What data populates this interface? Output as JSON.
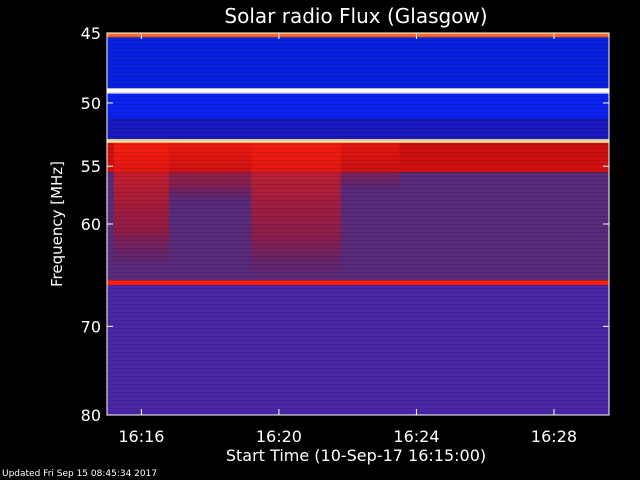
{
  "chart_data": {
    "type": "heatmap",
    "title": "Solar radio Flux (Glasgow)",
    "xlabel": "Start Time (10-Sep-17 16:15:00)",
    "ylabel": "Frequency [MHz]",
    "x_unit": "minutes after 16:15:00",
    "xlim": [
      0,
      14.6
    ],
    "x_ticks": [
      {
        "value": 1,
        "label": "16:16"
      },
      {
        "value": 5,
        "label": "16:20"
      },
      {
        "value": 9,
        "label": "16:24"
      },
      {
        "value": 13,
        "label": "16:28"
      }
    ],
    "ylim": [
      45,
      80
    ],
    "y_scale": "log",
    "y_ticks": [
      {
        "value": 45,
        "label": "45"
      },
      {
        "value": 50,
        "label": "50"
      },
      {
        "value": 55,
        "label": "55"
      },
      {
        "value": 60,
        "label": "60"
      },
      {
        "value": 70,
        "label": "70"
      },
      {
        "value": 80,
        "label": "80"
      }
    ],
    "colormap": [
      "#1f0fa0",
      "#4a2a9a",
      "#8a1a4a",
      "#d01010",
      "#ff2a10",
      "#ffb060",
      "#ffffff"
    ],
    "bands": [
      {
        "f_min": 45.0,
        "f_max": 45.3,
        "color": "#ff6a20"
      },
      {
        "f_min": 45.3,
        "f_max": 48.9,
        "color": "#0a20e0"
      },
      {
        "f_min": 48.9,
        "f_max": 49.3,
        "color": "#ffffff"
      },
      {
        "f_min": 49.3,
        "f_max": 51.2,
        "color": "#0a22f0"
      },
      {
        "f_min": 51.2,
        "f_max": 52.8,
        "color": "#1a18c0"
      },
      {
        "f_min": 52.8,
        "f_max": 53.1,
        "color": "#ffe6a0"
      },
      {
        "f_min": 53.1,
        "f_max": 55.5,
        "color": "#d01010"
      },
      {
        "f_min": 55.5,
        "f_max": 65.3,
        "color": "#5a2a7a"
      },
      {
        "f_min": 65.3,
        "f_max": 65.8,
        "color": "#ff2010"
      },
      {
        "f_min": 65.8,
        "f_max": 80.0,
        "color": "#4a26a8"
      }
    ],
    "burst_regions": [
      {
        "t_start": 0.2,
        "t_end": 1.8,
        "f_min": 53.1,
        "f_max": 64.0,
        "intensity": 0.9
      },
      {
        "t_start": 1.8,
        "t_end": 4.2,
        "f_min": 53.1,
        "f_max": 58.0,
        "intensity": 0.7
      },
      {
        "t_start": 4.2,
        "t_end": 6.8,
        "f_min": 53.1,
        "f_max": 65.0,
        "intensity": 0.8
      },
      {
        "t_start": 6.8,
        "t_end": 8.5,
        "f_min": 53.1,
        "f_max": 57.0,
        "intensity": 0.5
      }
    ]
  },
  "footer": {
    "updated": "Updated Fri Sep 15 08:45:34 2017"
  }
}
